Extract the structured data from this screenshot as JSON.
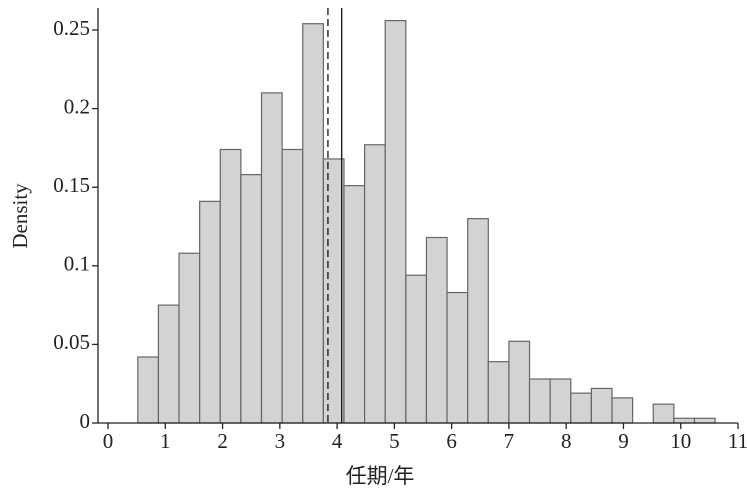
{
  "chart_data": {
    "type": "histogram",
    "x_label": "任期/年",
    "y_label": "Density",
    "bins": [
      0.52,
      0.88,
      1.24,
      1.6,
      1.96,
      2.32,
      2.68,
      3.04,
      3.4,
      3.76,
      4.12,
      4.48,
      4.84,
      5.2,
      5.56,
      5.92,
      6.28,
      6.64,
      7.0,
      7.36,
      7.72,
      8.08,
      8.44,
      8.8,
      9.16,
      9.52,
      9.88,
      10.24,
      10.6
    ],
    "values": [
      0.042,
      0.075,
      0.108,
      0.141,
      0.174,
      0.158,
      0.21,
      0.174,
      0.254,
      0.168,
      0.151,
      0.177,
      0.256,
      0.094,
      0.118,
      0.083,
      0.13,
      0.039,
      0.052,
      0.028,
      0.028,
      0.019,
      0.022,
      0.016,
      0,
      0.012,
      0.003,
      0.003
    ],
    "color": "#d3d3d3",
    "edge_color": "#666666",
    "reference_lines": [
      {
        "value": 3.84,
        "style": "dashed"
      },
      {
        "value": 4.08,
        "style": "solid"
      }
    ],
    "xlim": [
      -0.175,
      11
    ],
    "ylim": [
      0,
      0.264
    ],
    "xticks": [
      0,
      1,
      2,
      3,
      4,
      5,
      6,
      7,
      8,
      9,
      10,
      11
    ],
    "yticks": [
      0,
      0.05,
      0.1,
      0.15,
      0.2,
      0.25
    ]
  }
}
